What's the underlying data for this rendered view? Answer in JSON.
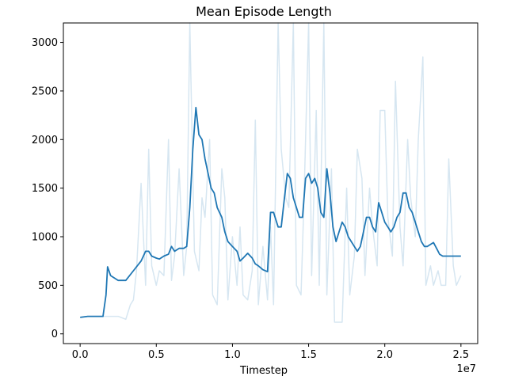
{
  "chart_data": {
    "type": "line",
    "title": "Mean Episode Length",
    "xlabel": "Timestep",
    "ylabel": "",
    "x_multiplier_label": "1e7",
    "xlim": [
      -0.11,
      2.61
    ],
    "ylim": [
      -100,
      3200
    ],
    "x_ticks": [
      0.0,
      0.5,
      1.0,
      1.5,
      2.0,
      2.5
    ],
    "x_tick_labels": [
      "0.0",
      "0.5",
      "1.0",
      "1.5",
      "2.0",
      "2.5"
    ],
    "y_ticks": [
      0,
      500,
      1000,
      1500,
      2000,
      2500,
      3000
    ],
    "y_tick_labels": [
      "0",
      "500",
      "1000",
      "1500",
      "2000",
      "2500",
      "3000"
    ],
    "grid": false,
    "colors": {
      "raw": "#d6e6f1",
      "smoothed": "#1f77b4"
    },
    "series": [
      {
        "key": "raw",
        "x": [
          0.0,
          0.05,
          0.1,
          0.15,
          0.2,
          0.25,
          0.3,
          0.33,
          0.35,
          0.37,
          0.4,
          0.43,
          0.45,
          0.47,
          0.5,
          0.52,
          0.55,
          0.58,
          0.6,
          0.62,
          0.65,
          0.68,
          0.7,
          0.72,
          0.75,
          0.78,
          0.8,
          0.82,
          0.85,
          0.87,
          0.9,
          0.93,
          0.95,
          0.97,
          1.0,
          1.03,
          1.05,
          1.07,
          1.1,
          1.13,
          1.15,
          1.17,
          1.2,
          1.23,
          1.25,
          1.27,
          1.3,
          1.32,
          1.35,
          1.37,
          1.4,
          1.42,
          1.45,
          1.47,
          1.5,
          1.52,
          1.55,
          1.57,
          1.6,
          1.62,
          1.65,
          1.67,
          1.7,
          1.72,
          1.75,
          1.77,
          1.8,
          1.82,
          1.85,
          1.87,
          1.9,
          1.92,
          1.95,
          1.97,
          2.0,
          2.02,
          2.05,
          2.07,
          2.1,
          2.12,
          2.15,
          2.17,
          2.2,
          2.22,
          2.25,
          2.27,
          2.3,
          2.32,
          2.35,
          2.37,
          2.4,
          2.42,
          2.45,
          2.47,
          2.5
        ],
        "values": [
          170,
          180,
          180,
          180,
          180,
          180,
          150,
          300,
          350,
          650,
          1550,
          500,
          1900,
          700,
          500,
          650,
          600,
          2000,
          550,
          800,
          1700,
          600,
          900,
          3300,
          850,
          650,
          1400,
          1200,
          2000,
          400,
          300,
          1700,
          1400,
          350,
          1000,
          500,
          1100,
          400,
          350,
          650,
          2200,
          300,
          900,
          350,
          1100,
          300,
          3300,
          1900,
          1400,
          1300,
          3200,
          500,
          400,
          1400,
          3300,
          600,
          2300,
          500,
          3300,
          400,
          1700,
          120,
          120,
          120,
          1500,
          400,
          800,
          1900,
          1600,
          600,
          1500,
          1100,
          700,
          2300,
          2300,
          1200,
          800,
          2600,
          1100,
          700,
          2000,
          1400,
          1000,
          2000,
          2850,
          500,
          700,
          500,
          650,
          500,
          500,
          1800,
          700,
          500,
          600
        ]
      },
      {
        "key": "smoothed",
        "x": [
          0.0,
          0.05,
          0.1,
          0.15,
          0.17,
          0.18,
          0.2,
          0.25,
          0.3,
          0.35,
          0.4,
          0.43,
          0.45,
          0.47,
          0.5,
          0.52,
          0.55,
          0.58,
          0.6,
          0.62,
          0.65,
          0.68,
          0.7,
          0.72,
          0.74,
          0.76,
          0.78,
          0.8,
          0.82,
          0.84,
          0.86,
          0.88,
          0.9,
          0.93,
          0.95,
          0.97,
          1.0,
          1.03,
          1.05,
          1.07,
          1.1,
          1.13,
          1.15,
          1.17,
          1.2,
          1.23,
          1.25,
          1.27,
          1.3,
          1.32,
          1.34,
          1.36,
          1.38,
          1.4,
          1.42,
          1.44,
          1.46,
          1.48,
          1.5,
          1.52,
          1.54,
          1.56,
          1.58,
          1.6,
          1.62,
          1.64,
          1.66,
          1.68,
          1.7,
          1.72,
          1.74,
          1.76,
          1.78,
          1.8,
          1.82,
          1.84,
          1.86,
          1.88,
          1.9,
          1.92,
          1.94,
          1.96,
          1.98,
          2.0,
          2.02,
          2.04,
          2.06,
          2.08,
          2.1,
          2.12,
          2.14,
          2.16,
          2.18,
          2.2,
          2.22,
          2.24,
          2.26,
          2.28,
          2.3,
          2.32,
          2.34,
          2.36,
          2.38,
          2.4,
          2.42,
          2.44,
          2.46,
          2.48,
          2.5
        ],
        "values": [
          170,
          180,
          180,
          180,
          400,
          690,
          600,
          550,
          550,
          650,
          750,
          850,
          850,
          800,
          780,
          770,
          800,
          820,
          900,
          850,
          880,
          880,
          900,
          1300,
          1900,
          2330,
          2050,
          2000,
          1800,
          1650,
          1500,
          1450,
          1300,
          1200,
          1050,
          950,
          900,
          850,
          750,
          780,
          830,
          780,
          720,
          700,
          660,
          640,
          1250,
          1250,
          1100,
          1100,
          1380,
          1650,
          1600,
          1400,
          1300,
          1200,
          1200,
          1600,
          1650,
          1550,
          1600,
          1500,
          1250,
          1200,
          1700,
          1450,
          1100,
          950,
          1050,
          1150,
          1100,
          1000,
          950,
          900,
          850,
          900,
          1050,
          1200,
          1200,
          1100,
          1050,
          1350,
          1250,
          1150,
          1100,
          1050,
          1100,
          1200,
          1250,
          1450,
          1450,
          1300,
          1250,
          1150,
          1050,
          950,
          900,
          900,
          920,
          940,
          880,
          820,
          800,
          800,
          800,
          800,
          800,
          800,
          800
        ],
        "note_scale": "x values in units of 1e7"
      }
    ]
  }
}
